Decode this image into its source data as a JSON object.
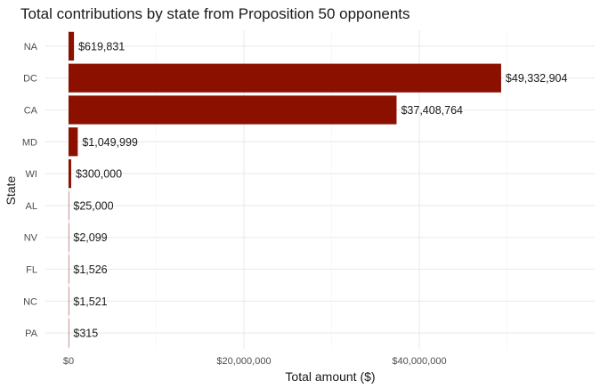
{
  "chart_data": {
    "type": "bar",
    "orientation": "horizontal",
    "title": "Total contributions by state from Proposition 50 opponents",
    "xlabel": "Total amount ($)",
    "ylabel": "State",
    "categories": [
      "NA",
      "DC",
      "CA",
      "MD",
      "WI",
      "AL",
      "NV",
      "FL",
      "NC",
      "PA"
    ],
    "values": [
      619831,
      49332904,
      37408764,
      1049999,
      300000,
      25000,
      2099,
      1526,
      1521,
      315
    ],
    "data_labels": [
      "$619,831",
      "$49,332,904",
      "$37,408,764",
      "$1,049,999",
      "$300,000",
      "$25,000",
      "$2,099",
      "$1,526",
      "$1,521",
      "$315"
    ],
    "x_ticks": [
      0,
      20000000,
      40000000
    ],
    "x_tick_labels": [
      "$0",
      "$20,000,000",
      "$40,000,000"
    ],
    "xlim": [
      0,
      59500000
    ],
    "bar_color": "#8B1000",
    "grid": true,
    "legend": "none"
  }
}
